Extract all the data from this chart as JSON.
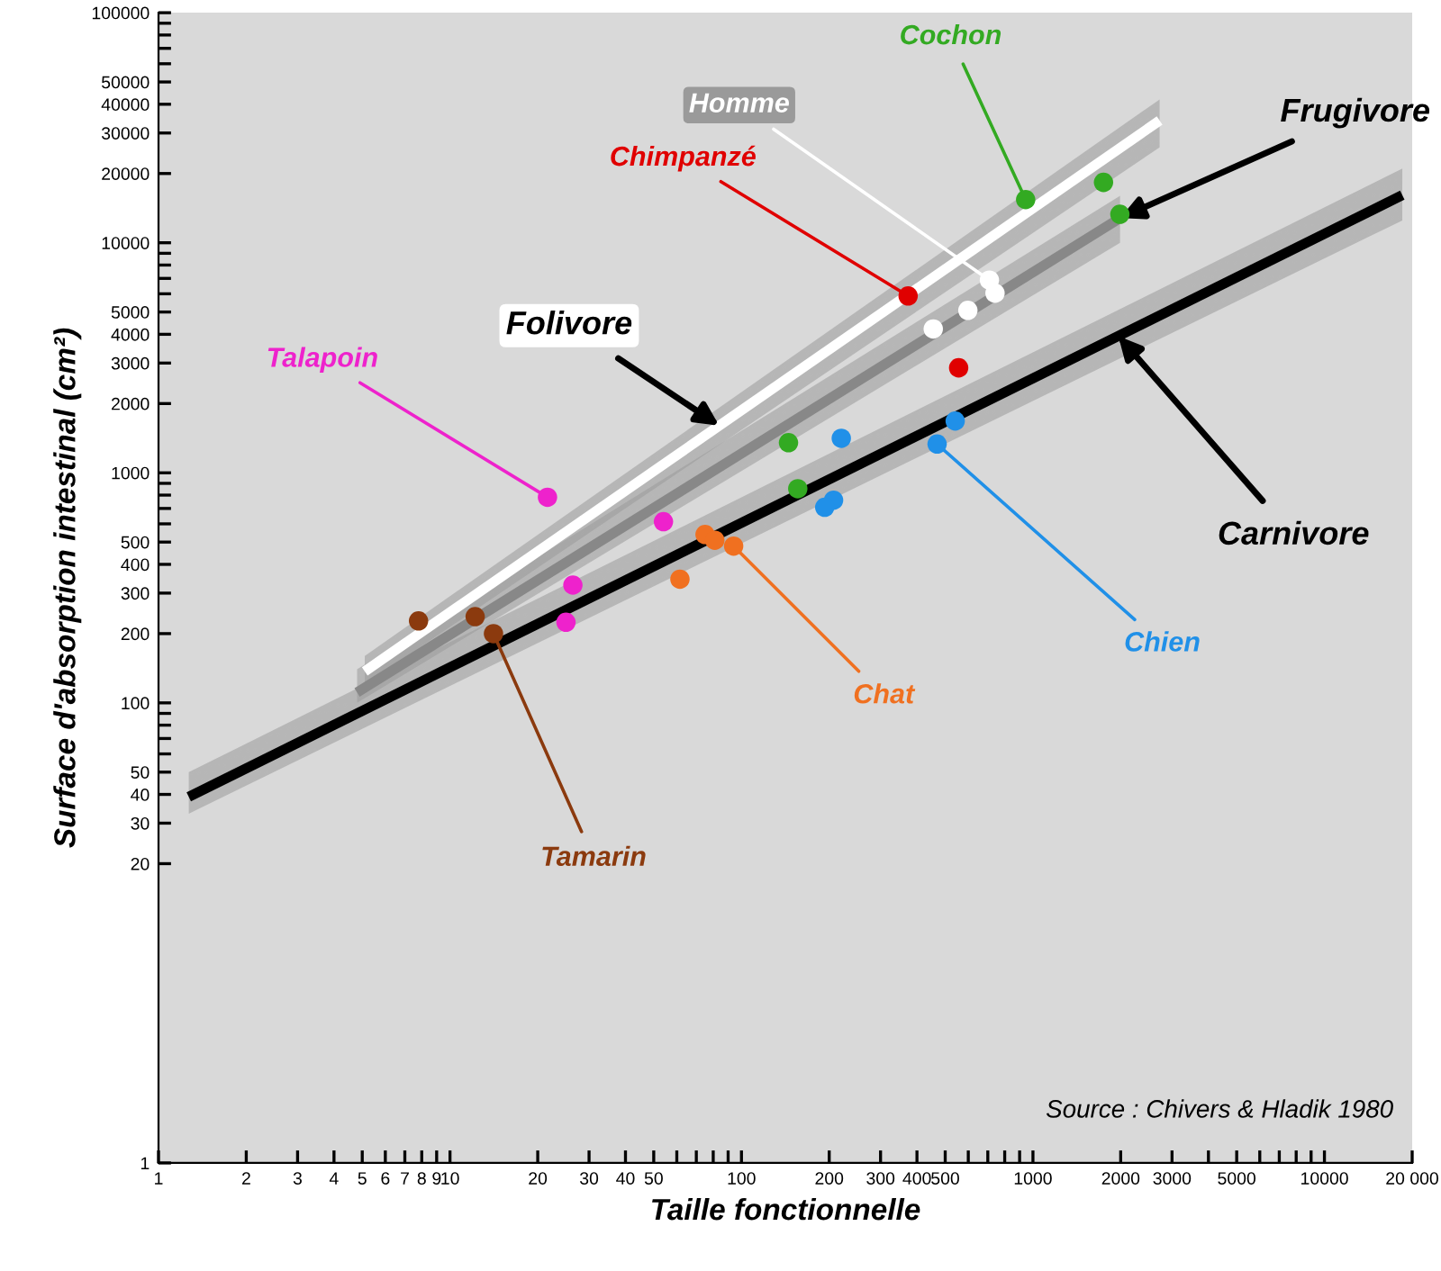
{
  "chart_data": {
    "type": "scatter",
    "xlabel": "Taille fonctionnelle",
    "ylabel": "Surface d'absorption intestinal (cm²)",
    "log": "xy",
    "xlim": [
      1,
      20000
    ],
    "ylim": [
      1,
      100000
    ],
    "grid": false,
    "legend": false,
    "marker": "circle",
    "xticks": [
      1,
      2,
      3,
      4,
      5,
      6,
      7,
      8,
      9,
      10,
      20,
      30,
      40,
      50,
      {
        "value": 60,
        "label": null
      },
      {
        "value": 70,
        "label": null
      },
      {
        "value": 80,
        "label": null
      },
      {
        "value": 90,
        "label": null
      },
      100,
      200,
      300,
      400,
      500,
      {
        "value": 600,
        "label": null
      },
      {
        "value": 700,
        "label": null
      },
      {
        "value": 800,
        "label": null
      },
      {
        "value": 900,
        "label": null
      },
      1000,
      2000,
      3000,
      {
        "value": 4000,
        "label": null
      },
      5000,
      {
        "value": 6000,
        "label": null
      },
      {
        "value": 7000,
        "label": null
      },
      {
        "value": 8000,
        "label": null
      },
      {
        "value": 9000,
        "label": null
      },
      10000,
      {
        "value": 20000,
        "label": "20 000"
      }
    ],
    "yticks": [
      1,
      20,
      30,
      40,
      50,
      {
        "value": 60,
        "label": null
      },
      {
        "value": 70,
        "label": null
      },
      {
        "value": 80,
        "label": null
      },
      {
        "value": 90,
        "label": null
      },
      100,
      200,
      300,
      400,
      500,
      {
        "value": 600,
        "label": null
      },
      {
        "value": 700,
        "label": null
      },
      {
        "value": 800,
        "label": null
      },
      {
        "value": 900,
        "label": null
      },
      1000,
      2000,
      3000,
      4000,
      5000,
      {
        "value": 6000,
        "label": null
      },
      {
        "value": 7000,
        "label": null
      },
      {
        "value": 8000,
        "label": null
      },
      {
        "value": 9000,
        "label": null
      },
      10000,
      20000,
      30000,
      40000,
      50000,
      {
        "value": 60000,
        "label": null
      },
      {
        "value": 70000,
        "label": null
      },
      {
        "value": 80000,
        "label": null
      },
      {
        "value": 90000,
        "label": null
      },
      100000
    ],
    "series": [
      {
        "name": "Folivore",
        "type": "line",
        "marker": "none",
        "color": "#ffffff",
        "x": [
          5.1,
          2720
        ],
        "values": [
          137,
          34000
        ],
        "lower": [
          120,
          26000
        ],
        "upper": [
          160,
          42000
        ]
      },
      {
        "name": "Frugivore",
        "type": "line",
        "marker": "none",
        "color": "#888888",
        "x": [
          4.8,
          1990
        ],
        "values": [
          111,
          12800
        ],
        "lower": [
          100,
          10000
        ],
        "upper": [
          140,
          16000
        ]
      },
      {
        "name": "Carnivore",
        "type": "line",
        "marker": "none",
        "color": "#000000",
        "x": [
          1.27,
          18500
        ],
        "values": [
          39,
          16100
        ],
        "lower": [
          33,
          12500
        ],
        "upper": [
          50,
          21000
        ]
      },
      {
        "name": "Talapoin",
        "color": "#ee22cc",
        "x": [
          21.6,
          54,
          26.4,
          25
        ],
        "values": [
          783,
          613,
          325,
          224
        ]
      },
      {
        "name": "Tamarin",
        "color": "#8b3a0e",
        "x": [
          14.1,
          7.8,
          12.2
        ],
        "values": [
          200,
          227,
          237
        ]
      },
      {
        "name": "Chat",
        "color": "#f07020",
        "x": [
          94,
          75,
          81,
          61.5
        ],
        "values": [
          480,
          539,
          509,
          345
        ]
      },
      {
        "name": "Chien",
        "color": "#2090e8",
        "x": [
          469,
          220,
          541,
          207,
          193
        ],
        "values": [
          1334,
          1413,
          1679,
          760,
          708
        ]
      },
      {
        "name": "Cochon",
        "color": "#33aa22",
        "x": [
          944,
          1746,
          1987,
          145,
          156
        ],
        "values": [
          15400,
          18300,
          13300,
          1352,
          853
        ]
      },
      {
        "name": "Homme",
        "color": "#ffffff",
        "x": [
          709,
          741,
          598,
          455
        ],
        "values": [
          6880,
          6040,
          5080,
          4220
        ]
      },
      {
        "name": "Chimpanzé",
        "color": "#e00000",
        "x": [
          373,
          556
        ],
        "values": [
          5870,
          2860
        ]
      }
    ],
    "annotations": [
      "Source : Chivers & Hladik 1980"
    ]
  }
}
